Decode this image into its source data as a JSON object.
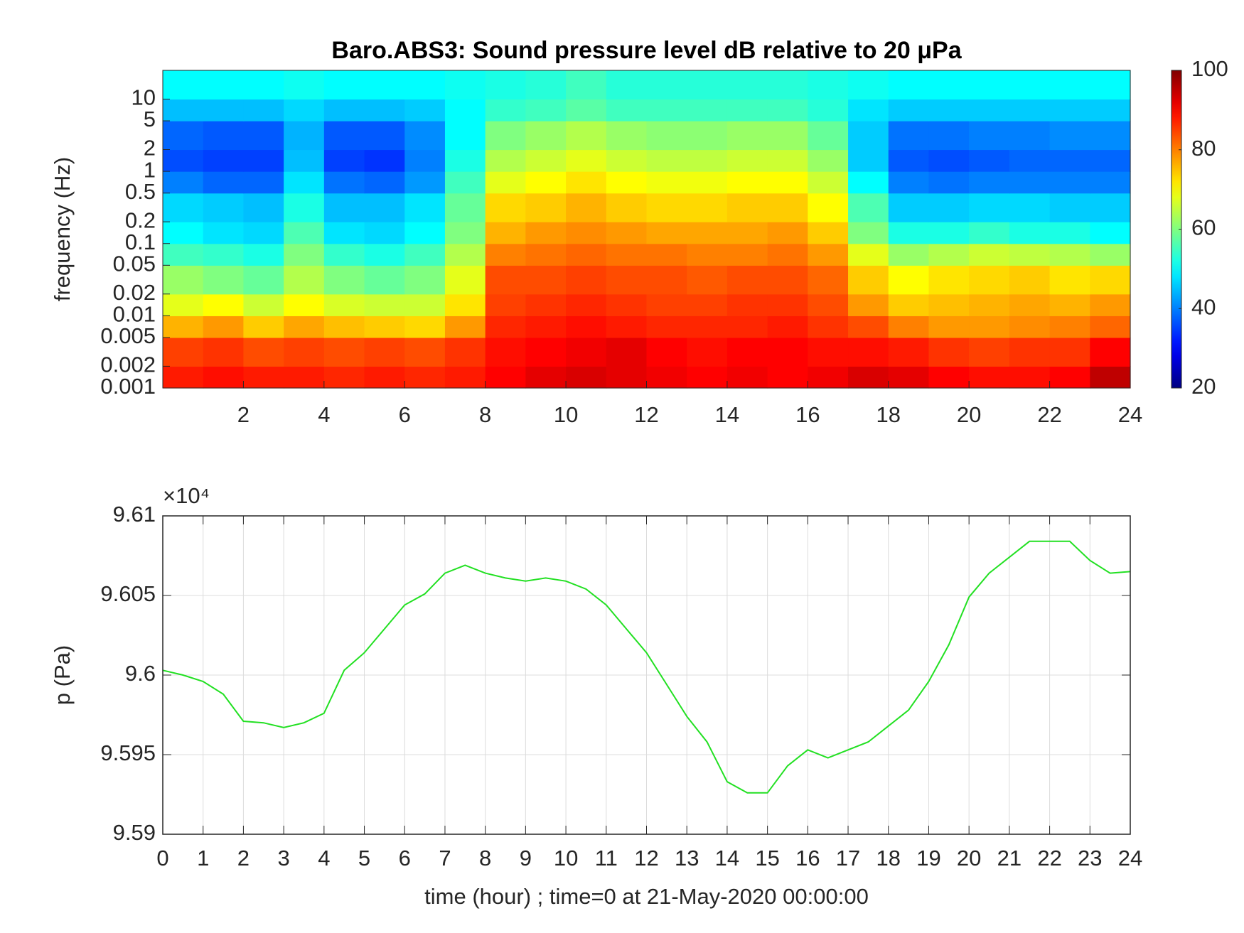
{
  "chart_data": [
    {
      "type": "heatmap",
      "title": "Baro.ABS3: Sound pressure level dB relative to 20 μPa",
      "ylabel": "frequency (Hz)",
      "x_bins": [
        0,
        1,
        2,
        3,
        4,
        5,
        6,
        7,
        8,
        9,
        10,
        11,
        12,
        13,
        14,
        15,
        16,
        17,
        18,
        19,
        20,
        21,
        22,
        23,
        24
      ],
      "y_bins": [
        0.001,
        0.002,
        0.005,
        0.01,
        0.02,
        0.05,
        0.1,
        0.2,
        0.5,
        1,
        2,
        5,
        10,
        25
      ],
      "z": [
        [
          88,
          89,
          88,
          88,
          87,
          88,
          87,
          88,
          90,
          92,
          93,
          92,
          91,
          90,
          91,
          90,
          91,
          93,
          92,
          90,
          89,
          89,
          90,
          95
        ],
        [
          85,
          86,
          84,
          85,
          84,
          85,
          84,
          86,
          89,
          90,
          91,
          92,
          90,
          89,
          90,
          90,
          89,
          89,
          88,
          86,
          85,
          86,
          86,
          90
        ],
        [
          76,
          78,
          74,
          77,
          75,
          74,
          73,
          78,
          87,
          88,
          89,
          88,
          87,
          87,
          87,
          88,
          86,
          84,
          80,
          78,
          78,
          79,
          80,
          82
        ],
        [
          68,
          70,
          66,
          70,
          67,
          66,
          66,
          72,
          85,
          86,
          87,
          86,
          85,
          85,
          86,
          86,
          84,
          78,
          74,
          75,
          76,
          77,
          76,
          78
        ],
        [
          62,
          60,
          58,
          64,
          60,
          58,
          60,
          68,
          84,
          84,
          85,
          84,
          84,
          83,
          84,
          84,
          82,
          74,
          70,
          72,
          73,
          74,
          72,
          73
        ],
        [
          55,
          54,
          52,
          60,
          54,
          52,
          55,
          64,
          80,
          81,
          82,
          81,
          81,
          80,
          80,
          81,
          78,
          68,
          62,
          64,
          66,
          65,
          64,
          62
        ],
        [
          50,
          48,
          47,
          56,
          48,
          47,
          50,
          60,
          76,
          78,
          79,
          78,
          77,
          77,
          77,
          78,
          74,
          60,
          52,
          52,
          54,
          52,
          52,
          50
        ],
        [
          47,
          46,
          45,
          52,
          45,
          45,
          48,
          58,
          73,
          74,
          76,
          74,
          73,
          73,
          74,
          74,
          70,
          56,
          46,
          46,
          47,
          47,
          46,
          46
        ],
        [
          40,
          38,
          38,
          48,
          39,
          38,
          42,
          55,
          68,
          70,
          72,
          70,
          69,
          69,
          70,
          70,
          66,
          50,
          40,
          39,
          40,
          40,
          40,
          40
        ],
        [
          36,
          35,
          35,
          45,
          35,
          34,
          40,
          52,
          64,
          66,
          68,
          66,
          65,
          65,
          66,
          66,
          62,
          46,
          37,
          36,
          37,
          38,
          38,
          38
        ],
        [
          38,
          37,
          37,
          44,
          37,
          37,
          41,
          50,
          60,
          62,
          64,
          62,
          61,
          61,
          62,
          62,
          58,
          46,
          39,
          39,
          40,
          40,
          41,
          41
        ],
        [
          45,
          45,
          45,
          47,
          45,
          45,
          46,
          50,
          54,
          55,
          57,
          55,
          55,
          55,
          55,
          55,
          53,
          48,
          46,
          46,
          46,
          46,
          46,
          46
        ],
        [
          50,
          50,
          50,
          51,
          50,
          50,
          50,
          51,
          52,
          53,
          55,
          53,
          53,
          53,
          53,
          53,
          52,
          51,
          50,
          50,
          50,
          50,
          50,
          50
        ]
      ],
      "xlim": [
        0,
        24
      ],
      "xticks": [
        2,
        4,
        6,
        8,
        10,
        12,
        14,
        16,
        18,
        20,
        22,
        24
      ],
      "ylim": [
        0.001,
        25
      ],
      "ylog": true,
      "yticks": [
        0.001,
        0.002,
        0.005,
        0.01,
        0.02,
        0.05,
        0.1,
        0.2,
        0.5,
        1,
        2,
        5,
        10
      ],
      "colormap": "jet",
      "clim": [
        20,
        100
      ],
      "cticks": [
        20,
        40,
        60,
        80,
        100
      ]
    },
    {
      "type": "line",
      "xlabel": "time (hour) ; time=0 at 21-May-2020 00:00:00",
      "ylabel": "p (Pa)",
      "y_multiplier": "×10⁴",
      "x": [
        0,
        0.5,
        1,
        1.5,
        2,
        2.5,
        3,
        3.5,
        4,
        4.5,
        5,
        5.5,
        6,
        6.5,
        7,
        7.5,
        8,
        8.5,
        9,
        9.5,
        10,
        10.5,
        11,
        11.5,
        12,
        12.5,
        13,
        13.5,
        14,
        14.5,
        15,
        15.5,
        16,
        16.5,
        17,
        17.5,
        18,
        18.5,
        19,
        19.5,
        20,
        20.5,
        21,
        21.5,
        22,
        22.5,
        23,
        23.5,
        24
      ],
      "series": [
        {
          "color": "#22e022",
          "values": [
            96003,
            96000,
            95996,
            95988,
            95971,
            95970,
            95967,
            95970,
            95976,
            96003,
            96014,
            96029,
            96044,
            96051,
            96064,
            96069,
            96064,
            96061,
            96059,
            96061,
            96059,
            96054,
            96044,
            96029,
            96014,
            95994,
            95974,
            95958,
            95933,
            95926,
            95926,
            95943,
            95953,
            95948,
            95953,
            95958,
            95968,
            95978,
            95996,
            96019,
            96049,
            96064,
            96074,
            96084,
            96084,
            96084,
            96072,
            96064,
            96065
          ]
        }
      ],
      "xlim": [
        0,
        24
      ],
      "xticks": [
        0,
        1,
        2,
        3,
        4,
        5,
        6,
        7,
        8,
        9,
        10,
        11,
        12,
        13,
        14,
        15,
        16,
        17,
        18,
        19,
        20,
        21,
        22,
        23,
        24
      ],
      "ylim": [
        95900,
        96100
      ],
      "yticks": [
        {
          "value": 95900,
          "label": "9.59"
        },
        {
          "value": 95950,
          "label": "9.595"
        },
        {
          "value": 96000,
          "label": "9.6"
        },
        {
          "value": 96050,
          "label": "9.605"
        },
        {
          "value": 96100,
          "label": "9.61"
        }
      ],
      "grid": true
    }
  ]
}
